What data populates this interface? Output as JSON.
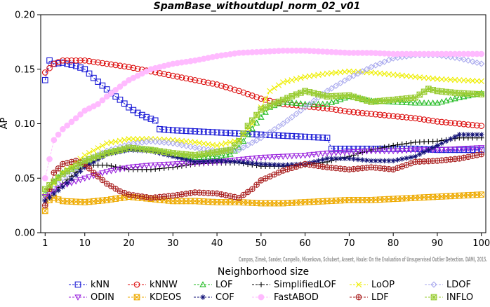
{
  "chart_data": {
    "type": "line",
    "title": "SpamBase_withoutdupl_norm_02_v01",
    "xlabel": "Neighborhood size",
    "ylabel": "AP",
    "xlim": [
      0,
      101
    ],
    "ylim": [
      0,
      0.2
    ],
    "xticks": [
      1,
      10,
      20,
      30,
      40,
      50,
      60,
      70,
      80,
      90,
      100
    ],
    "xtick_labels": [
      "1",
      "10",
      "20",
      "30",
      "40",
      "50",
      "60",
      "70",
      "80",
      "90",
      "100"
    ],
    "yticks": [
      0,
      0.05,
      0.1,
      0.15,
      0.2
    ],
    "ytick_labels": [
      "0.00",
      "0.05",
      "0.10",
      "0.15",
      "0.20"
    ],
    "grid": false,
    "legend_position": "bottom",
    "watermark": "Campos, Zimek, Sander, Campello, Micenkova, Schubert, Assent, Houle: On the Evaluation of Unsupervised Outlier Detection. DAMI, 2015.",
    "series": [
      {
        "name": "kNN",
        "color": "#1a1ad6",
        "marker": "square",
        "x": [
          1,
          2,
          3,
          5,
          8,
          10,
          12,
          14,
          16,
          18,
          20,
          22,
          24,
          26,
          27,
          30,
          35,
          40,
          45,
          50,
          55,
          60,
          65,
          66,
          70,
          75,
          80,
          85,
          90,
          95,
          100
        ],
        "y": [
          0.14,
          0.158,
          0.155,
          0.156,
          0.153,
          0.15,
          0.142,
          0.135,
          0.128,
          0.122,
          0.115,
          0.11,
          0.106,
          0.103,
          0.095,
          0.094,
          0.093,
          0.092,
          0.091,
          0.09,
          0.089,
          0.088,
          0.087,
          0.077,
          0.077,
          0.077,
          0.077,
          0.077,
          0.076,
          0.076,
          0.076
        ]
      },
      {
        "name": "kNNW",
        "color": "#dd1111",
        "marker": "circle",
        "x": [
          1,
          3,
          5,
          10,
          15,
          20,
          25,
          30,
          35,
          40,
          45,
          50,
          55,
          60,
          65,
          70,
          75,
          80,
          85,
          90,
          95,
          100
        ],
        "y": [
          0.147,
          0.155,
          0.158,
          0.158,
          0.155,
          0.152,
          0.148,
          0.144,
          0.14,
          0.136,
          0.13,
          0.123,
          0.118,
          0.116,
          0.114,
          0.111,
          0.109,
          0.107,
          0.105,
          0.102,
          0.1,
          0.098
        ]
      },
      {
        "name": "LOF",
        "color": "#22bb22",
        "marker": "triangle-up",
        "x": [
          1,
          3,
          5,
          8,
          10,
          12,
          15,
          20,
          25,
          30,
          35,
          40,
          43,
          45,
          47,
          50,
          52,
          55,
          60,
          65,
          70,
          75,
          80,
          85,
          90,
          95,
          100
        ],
        "y": [
          0.036,
          0.047,
          0.055,
          0.06,
          0.064,
          0.068,
          0.073,
          0.077,
          0.076,
          0.072,
          0.069,
          0.07,
          0.072,
          0.078,
          0.09,
          0.106,
          0.115,
          0.12,
          0.118,
          0.118,
          0.125,
          0.121,
          0.12,
          0.119,
          0.119,
          0.124,
          0.128
        ]
      },
      {
        "name": "SimplifiedLOF",
        "color": "#000000",
        "marker": "plus",
        "x": [
          1,
          5,
          10,
          15,
          20,
          25,
          30,
          35,
          40,
          45,
          50,
          55,
          60,
          65,
          70,
          75,
          80,
          85,
          90,
          95,
          100
        ],
        "y": [
          0.03,
          0.045,
          0.062,
          0.062,
          0.058,
          0.058,
          0.06,
          0.063,
          0.064,
          0.064,
          0.061,
          0.061,
          0.062,
          0.065,
          0.07,
          0.076,
          0.08,
          0.083,
          0.084,
          0.087,
          0.087
        ]
      },
      {
        "name": "LoOP",
        "color": "#eeee00",
        "marker": "x",
        "x": [
          1,
          3,
          5,
          10,
          15,
          20,
          25,
          30,
          35,
          40,
          45,
          48,
          50,
          52,
          55,
          60,
          65,
          70,
          75,
          80,
          85,
          90,
          95,
          100
        ],
        "y": [
          0.034,
          0.045,
          0.055,
          0.071,
          0.082,
          0.086,
          0.086,
          0.085,
          0.083,
          0.08,
          0.085,
          0.1,
          0.115,
          0.13,
          0.138,
          0.143,
          0.146,
          0.148,
          0.147,
          0.145,
          0.143,
          0.141,
          0.14,
          0.139
        ]
      },
      {
        "name": "LDOF",
        "color": "#aaaaee",
        "marker": "diamond",
        "x": [
          1,
          5,
          10,
          15,
          20,
          25,
          30,
          35,
          40,
          45,
          50,
          55,
          60,
          65,
          70,
          75,
          80,
          85,
          90,
          95,
          100
        ],
        "y": [
          0.031,
          0.05,
          0.066,
          0.075,
          0.081,
          0.084,
          0.082,
          0.078,
          0.075,
          0.076,
          0.087,
          0.1,
          0.115,
          0.13,
          0.142,
          0.152,
          0.16,
          0.163,
          0.163,
          0.16,
          0.155
        ]
      },
      {
        "name": "ODIN",
        "color": "#9922dd",
        "marker": "triangle-down",
        "x": [
          1,
          5,
          10,
          15,
          20,
          25,
          30,
          35,
          40,
          45,
          50,
          55,
          60,
          65,
          70,
          75,
          80,
          85,
          90,
          95,
          100
        ],
        "y": [
          0.033,
          0.043,
          0.05,
          0.056,
          0.06,
          0.062,
          0.063,
          0.064,
          0.065,
          0.067,
          0.069,
          0.07,
          0.071,
          0.073,
          0.074,
          0.075,
          0.075,
          0.076,
          0.076,
          0.077,
          0.078
        ]
      },
      {
        "name": "KDEOS",
        "color": "#eeaa00",
        "marker": "square-x",
        "x": [
          1,
          2,
          3,
          5,
          10,
          15,
          20,
          25,
          30,
          35,
          40,
          45,
          50,
          55,
          60,
          65,
          70,
          75,
          80,
          85,
          90,
          95,
          100
        ],
        "y": [
          0.02,
          0.03,
          0.032,
          0.029,
          0.028,
          0.03,
          0.033,
          0.031,
          0.029,
          0.029,
          0.028,
          0.028,
          0.027,
          0.027,
          0.028,
          0.029,
          0.03,
          0.03,
          0.031,
          0.032,
          0.033,
          0.034,
          0.035
        ]
      },
      {
        "name": "COF",
        "color": "#111177",
        "marker": "asterisk",
        "x": [
          1,
          5,
          10,
          15,
          20,
          25,
          30,
          35,
          40,
          45,
          50,
          55,
          60,
          65,
          70,
          75,
          80,
          85,
          90,
          95,
          100
        ],
        "y": [
          0.029,
          0.042,
          0.06,
          0.072,
          0.076,
          0.075,
          0.07,
          0.065,
          0.066,
          0.065,
          0.063,
          0.062,
          0.063,
          0.068,
          0.068,
          0.066,
          0.066,
          0.07,
          0.08,
          0.09,
          0.09
        ]
      },
      {
        "name": "FastABOD",
        "color": "#ffbbff",
        "marker": "circle-filled",
        "x": [
          1,
          3,
          5,
          8,
          10,
          13,
          15,
          20,
          25,
          30,
          35,
          40,
          45,
          50,
          55,
          60,
          65,
          70,
          75,
          80,
          85,
          90,
          95,
          100
        ],
        "y": [
          0.05,
          0.085,
          0.095,
          0.105,
          0.112,
          0.118,
          0.125,
          0.14,
          0.15,
          0.155,
          0.158,
          0.162,
          0.165,
          0.166,
          0.167,
          0.167,
          0.166,
          0.165,
          0.165,
          0.164,
          0.164,
          0.164,
          0.164,
          0.164
        ]
      },
      {
        "name": "LDF",
        "color": "#aa2222",
        "marker": "circle-plus",
        "x": [
          1,
          3,
          5,
          8,
          10,
          12,
          15,
          18,
          20,
          25,
          30,
          35,
          40,
          45,
          48,
          50,
          55,
          60,
          65,
          70,
          75,
          80,
          85,
          90,
          95,
          100
        ],
        "y": [
          0.025,
          0.055,
          0.063,
          0.066,
          0.063,
          0.055,
          0.045,
          0.038,
          0.035,
          0.032,
          0.034,
          0.037,
          0.036,
          0.032,
          0.04,
          0.048,
          0.057,
          0.063,
          0.06,
          0.058,
          0.06,
          0.058,
          0.065,
          0.066,
          0.068,
          0.072
        ]
      },
      {
        "name": "INFLO",
        "color": "#99cc33",
        "marker": "square-star",
        "x": [
          1,
          5,
          10,
          15,
          20,
          25,
          30,
          35,
          40,
          43,
          45,
          47,
          50,
          55,
          60,
          65,
          70,
          75,
          80,
          85,
          88,
          90,
          95,
          100
        ],
        "y": [
          0.04,
          0.054,
          0.066,
          0.073,
          0.078,
          0.076,
          0.073,
          0.071,
          0.074,
          0.076,
          0.084,
          0.098,
          0.113,
          0.122,
          0.13,
          0.125,
          0.126,
          0.12,
          0.122,
          0.124,
          0.132,
          0.13,
          0.128,
          0.127
        ]
      }
    ]
  }
}
